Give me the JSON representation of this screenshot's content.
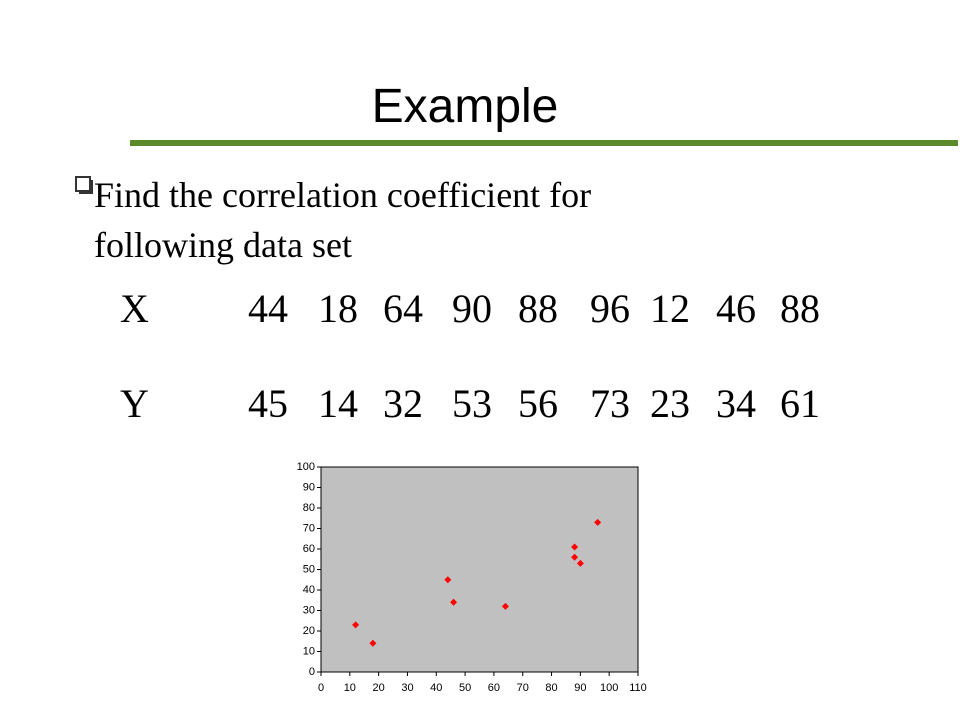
{
  "title": "Example",
  "bullet": [
    "Find the correlation coefficient for",
    "following data set"
  ],
  "table": {
    "rows": [
      {
        "label": "X",
        "values": [
          44,
          18,
          64,
          90,
          88,
          96,
          12,
          46,
          88
        ]
      },
      {
        "label": "Y",
        "values": [
          45,
          14,
          32,
          53,
          56,
          73,
          23,
          34,
          61
        ]
      }
    ]
  },
  "chart_data": {
    "type": "scatter",
    "x": [
      44,
      18,
      64,
      90,
      88,
      96,
      12,
      46,
      88
    ],
    "values": [
      45,
      14,
      32,
      53,
      56,
      73,
      23,
      34,
      61
    ],
    "color": "#ff0000",
    "xlim": [
      0,
      110
    ],
    "xticks": [
      0,
      10,
      20,
      30,
      40,
      50,
      60,
      70,
      80,
      90,
      100,
      110
    ],
    "ylim": [
      0,
      100
    ],
    "yticks": [
      0,
      10,
      20,
      30,
      40,
      50,
      60,
      70,
      80,
      90,
      100
    ]
  }
}
